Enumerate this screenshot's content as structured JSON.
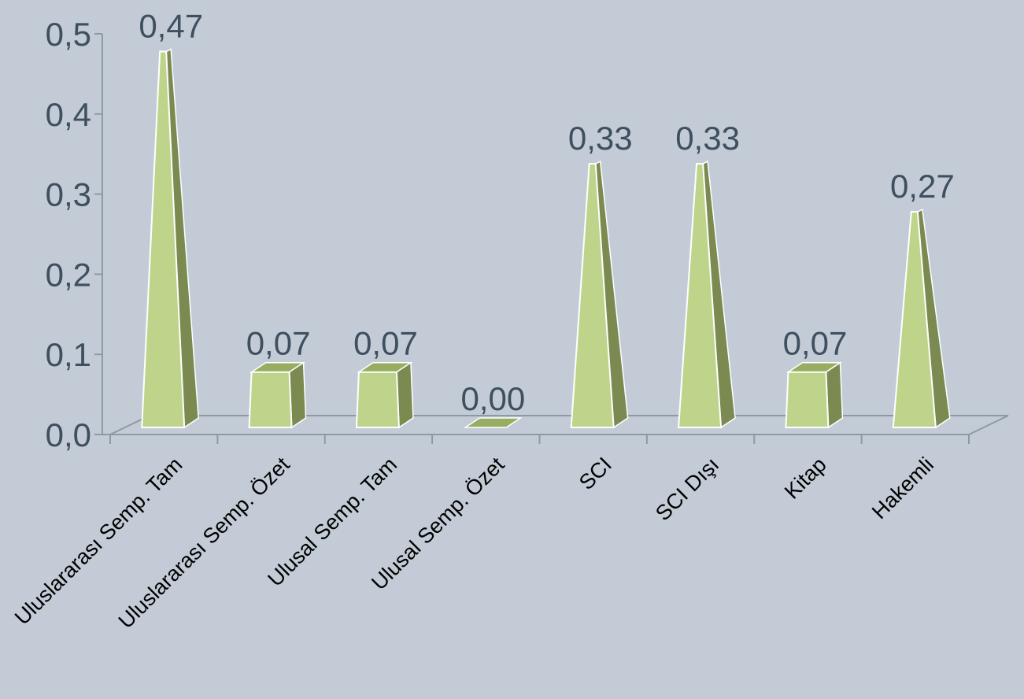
{
  "chart_data": {
    "type": "bar",
    "title": "",
    "xlabel": "",
    "ylabel": "",
    "ylim": [
      0,
      0.5
    ],
    "y_ticks": [
      0.0,
      0.1,
      0.2,
      0.3,
      0.4,
      0.5
    ],
    "y_tick_labels": [
      "0,0",
      "0,1",
      "0,2",
      "0,3",
      "0,4",
      "0,5"
    ],
    "categories": [
      "Uluslararası Semp. Tam",
      "Uluslararası Semp. Özet",
      "Ulusal Semp. Tam",
      "Ulusal Semp. Özet",
      "SCI",
      "SCI Dışı",
      "Kitap",
      "Hakemli"
    ],
    "values": [
      0.47,
      0.07,
      0.07,
      0.0,
      0.33,
      0.33,
      0.07,
      0.27
    ],
    "value_labels": [
      "0,47",
      "0,07",
      "0,07",
      "0,00",
      "0,33",
      "0,33",
      "0,07",
      "0,27"
    ],
    "shapes": [
      "pyramid",
      "box",
      "box",
      "box",
      "pyramid",
      "pyramid",
      "box",
      "pyramid"
    ],
    "style": "3d",
    "grid": false,
    "legend": "none",
    "colors": {
      "bar_front": "#bdd48a",
      "bar_side": "#7b8a50",
      "bar_top": "#97ad62",
      "bar_edge": "#ffffff",
      "axis": "#8d99a5",
      "text": "#3e4f5f",
      "category_text": "#000000",
      "background": "#c3ccd6"
    }
  }
}
